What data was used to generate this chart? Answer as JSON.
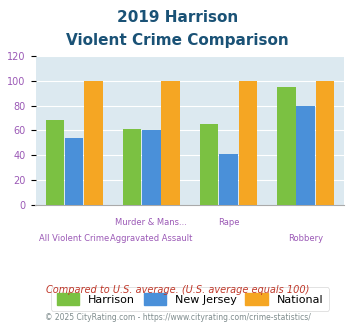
{
  "title_line1": "2019 Harrison",
  "title_line2": "Violent Crime Comparison",
  "tick_labels_top": [
    "",
    "Murder & Mans...",
    "Rape",
    ""
  ],
  "tick_labels_bottom": [
    "All Violent Crime",
    "Aggravated Assault",
    "",
    "Robbery"
  ],
  "harrison": [
    68,
    61,
    65,
    95
  ],
  "new_jersey": [
    54,
    60,
    41,
    80
  ],
  "national": [
    100,
    100,
    100,
    100
  ],
  "bar_colors": {
    "harrison": "#7bc142",
    "new_jersey": "#4a90d9",
    "national": "#f5a623"
  },
  "ylim": [
    0,
    120
  ],
  "yticks": [
    0,
    20,
    40,
    60,
    80,
    100,
    120
  ],
  "legend_labels": [
    "Harrison",
    "New Jersey",
    "National"
  ],
  "footnote1": "Compared to U.S. average. (U.S. average equals 100)",
  "footnote2": "© 2025 CityRating.com - https://www.cityrating.com/crime-statistics/",
  "bg_color": "#dce9f0",
  "title_color": "#1a5276",
  "tick_label_color": "#9b59b6",
  "footnote1_color": "#c0392b",
  "footnote2_color": "#7f8c8d",
  "bar_width": 0.25
}
